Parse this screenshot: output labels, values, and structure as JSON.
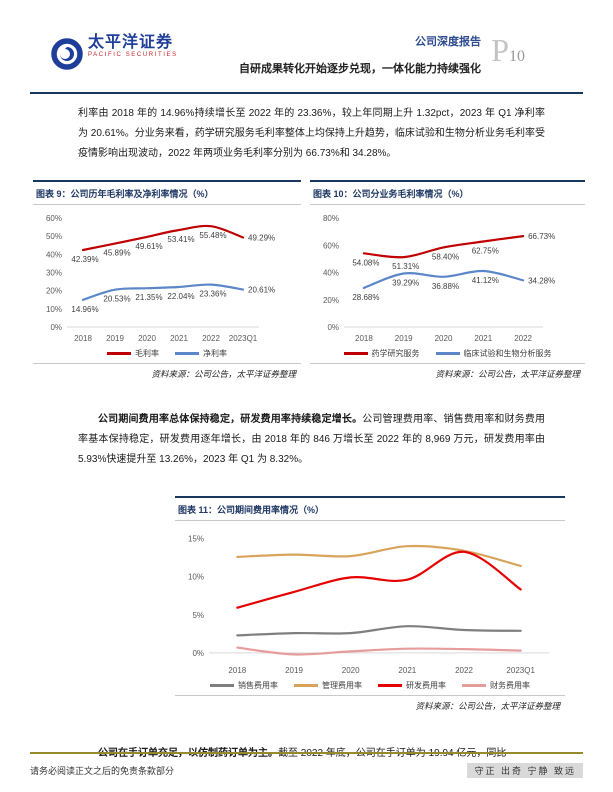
{
  "colors": {
    "navy_rule": "#17375E",
    "figure_title": "#1F3864",
    "report_type_blue": "#2E4B8F",
    "footer_gold": "#958A2C",
    "red_series": "#C00000",
    "blue_series": "#5B87C9"
  },
  "header": {
    "logo_cn": "太平洋证券",
    "logo_en": "PACIFIC SECURITIES",
    "report_type": "公司深度报告",
    "report_title": "自研成果转化开始逐步兑现，一体化能力持续强化",
    "page_prefix": "P",
    "page_number": "10"
  },
  "paragraph1": "利率由 2018 年的 14.96%持续增长至 2022 年的 23.36%，较上年同期上升 1.32pct，2023 年 Q1 净利率为 20.61%。分业务来看，药学研究服务毛利率整体上均保持上升趋势，临床试验和生物分析业务毛利率受疫情影响出现波动，2022 年两项业务毛利率分别为 66.73%和 34.28%。",
  "paragraph2": {
    "bold": "公司期间费用率总体保持稳定，研发费用率持续稳定增长。",
    "rest": "公司管理费用率、销售费用率和财务费用率基本保持稳定，研发费用逐年增长，由 2018 年的 846 万增长至 2022 年的 8,969 万元，研发费用率由 5.93%快速提升至 13.26%，2023 年 Q1 为 8.32%。"
  },
  "paragraph3": {
    "bold": "公司在手订单充足，以仿制药订单为主。",
    "rest": "截至 2022 年底，公司在手订单为 19.94 亿元，同比"
  },
  "chart_data": [
    {
      "type": "line",
      "title": "图表 9：公司历年毛利率及净利率情况（%）",
      "source": "资料来源：公司公告，太平洋证券整理",
      "categories": [
        "2018",
        "2019",
        "2020",
        "2021",
        "2022",
        "2023Q1"
      ],
      "series": [
        {
          "name": "毛利率",
          "color": "#C00000",
          "values": [
            42.39,
            45.89,
            49.61,
            53.41,
            55.48,
            49.29
          ]
        },
        {
          "name": "净利率",
          "color": "#5B87C9",
          "values": [
            14.96,
            20.53,
            21.35,
            22.04,
            23.36,
            20.61
          ]
        }
      ],
      "ylim": [
        0,
        60
      ],
      "yticks": [
        0,
        10,
        20,
        30,
        40,
        50,
        60
      ],
      "show_point_labels": true,
      "legend_position": "bottom",
      "grid": false
    },
    {
      "type": "line",
      "title": "图表 10：公司分业务毛利率情况（%）",
      "source": "资料来源：公司公告，太平洋证券整理",
      "categories": [
        "2018",
        "2019",
        "2020",
        "2021",
        "2022"
      ],
      "series": [
        {
          "name": "药学研究服务",
          "color": "#C00000",
          "values": [
            54.08,
            51.31,
            58.4,
            62.75,
            66.73
          ]
        },
        {
          "name": "临床试验和生物分析服务",
          "color": "#5B87C9",
          "values": [
            28.68,
            39.29,
            36.88,
            41.12,
            34.28
          ]
        }
      ],
      "ylim": [
        0,
        80
      ],
      "yticks": [
        0,
        20,
        40,
        60,
        80
      ],
      "show_point_labels": true,
      "legend_position": "bottom",
      "grid": false
    },
    {
      "type": "line",
      "title": "图表 11：公司期间费用率情况（%）",
      "source": "资料来源：公司公告，太平洋证券整理",
      "categories": [
        "2018",
        "2019",
        "2020",
        "2021",
        "2022",
        "2023Q1"
      ],
      "series": [
        {
          "name": "销售费用率",
          "color": "#7F7F7F",
          "values": [
            2.3,
            2.6,
            2.6,
            3.5,
            3.0,
            2.9
          ]
        },
        {
          "name": "管理费用率",
          "color": "#D8A45C",
          "values": [
            12.6,
            12.9,
            12.7,
            14.0,
            13.4,
            11.4
          ]
        },
        {
          "name": "研发费用率",
          "color": "#E60000",
          "values": [
            5.93,
            8.0,
            9.9,
            9.6,
            13.26,
            8.32
          ]
        },
        {
          "name": "财务费用率",
          "color": "#E79C9C",
          "values": [
            0.7,
            -0.2,
            0.2,
            0.55,
            0.5,
            0.3
          ]
        }
      ],
      "ylim": [
        -0.8,
        15.6
      ],
      "yticks": [
        0,
        5,
        10,
        15
      ],
      "show_point_labels": false,
      "legend_position": "bottom",
      "grid": false
    }
  ],
  "footer": {
    "left": "请务必阅读正文之后的免责条款部分",
    "right": "守正 出奇 宁静 致远"
  }
}
